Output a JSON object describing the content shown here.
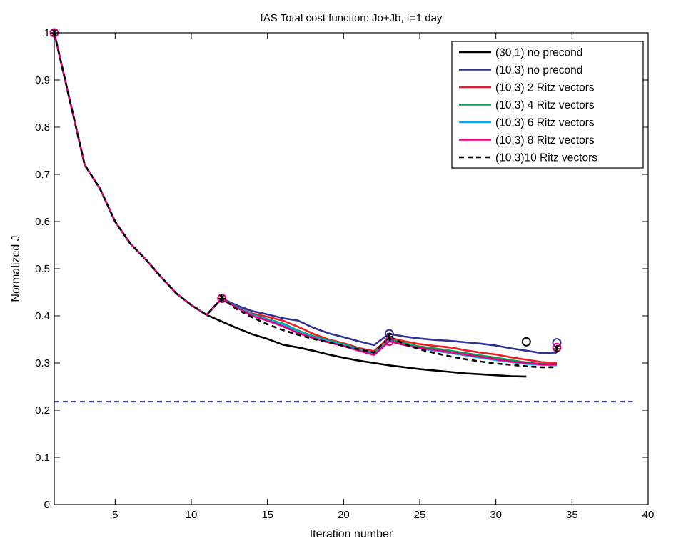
{
  "chart_data": {
    "type": "line",
    "title": "IAS Total cost function: Jo+Jb, t=1 day",
    "xlabel": "Iteration number",
    "ylabel": "Normalized J",
    "xlim": [
      1,
      40
    ],
    "ylim": [
      0,
      1
    ],
    "xticks": [
      5,
      10,
      15,
      20,
      25,
      30,
      35,
      40
    ],
    "yticks": [
      0,
      0.1,
      0.2,
      0.3,
      0.4,
      0.5,
      0.6,
      0.7,
      0.8,
      0.9,
      1
    ],
    "xtick_labels": [
      "5",
      "10",
      "15",
      "20",
      "25",
      "30",
      "35",
      "40"
    ],
    "ytick_labels": [
      "0",
      "0.1",
      "0.2",
      "0.3",
      "0.4",
      "0.5",
      "0.6",
      "0.7",
      "0.8",
      "0.9",
      "1"
    ],
    "grid": false,
    "legend_position": "top-right",
    "reference_line": {
      "y": 0.218,
      "color": "#2e3192",
      "style": "dashed",
      "x_range": [
        1,
        39
      ]
    },
    "series": [
      {
        "name": "(30,1) no precond",
        "color": "#000000",
        "style": "solid",
        "points": [
          [
            1,
            1
          ],
          [
            2,
            0.86
          ],
          [
            3,
            0.72
          ],
          [
            4,
            0.67
          ],
          [
            5,
            0.6
          ],
          [
            6,
            0.553
          ],
          [
            7,
            0.52
          ],
          [
            8,
            0.483
          ],
          [
            9,
            0.448
          ],
          [
            10,
            0.423
          ],
          [
            11,
            0.402
          ],
          [
            12,
            0.388
          ],
          [
            13,
            0.374
          ],
          [
            14,
            0.361
          ],
          [
            15,
            0.351
          ],
          [
            16,
            0.339
          ],
          [
            17,
            0.333
          ],
          [
            18,
            0.326
          ],
          [
            19,
            0.318
          ],
          [
            20,
            0.311
          ],
          [
            21,
            0.305
          ],
          [
            22,
            0.3
          ],
          [
            23,
            0.295
          ],
          [
            24,
            0.291
          ],
          [
            25,
            0.287
          ],
          [
            26,
            0.284
          ],
          [
            27,
            0.281
          ],
          [
            28,
            0.278
          ],
          [
            29,
            0.276
          ],
          [
            30,
            0.274
          ],
          [
            31,
            0.272
          ],
          [
            32,
            0.271
          ]
        ],
        "markers": [
          {
            "x": 32,
            "y": 0.345,
            "symbol": "circle"
          }
        ]
      },
      {
        "name": "(10,3) no precond",
        "color": "#2e3192",
        "style": "solid",
        "points": [
          [
            1,
            1
          ],
          [
            2,
            0.86
          ],
          [
            3,
            0.72
          ],
          [
            4,
            0.67
          ],
          [
            5,
            0.6
          ],
          [
            6,
            0.553
          ],
          [
            7,
            0.52
          ],
          [
            8,
            0.483
          ],
          [
            9,
            0.448
          ],
          [
            10,
            0.423
          ],
          [
            11,
            0.402
          ],
          [
            12,
            0.437
          ],
          [
            13,
            0.422
          ],
          [
            14,
            0.41
          ],
          [
            15,
            0.403
          ],
          [
            16,
            0.395
          ],
          [
            17,
            0.39
          ],
          [
            18,
            0.375
          ],
          [
            19,
            0.363
          ],
          [
            20,
            0.355
          ],
          [
            21,
            0.346
          ],
          [
            22,
            0.338
          ],
          [
            23,
            0.362
          ],
          [
            24,
            0.356
          ],
          [
            25,
            0.352
          ],
          [
            26,
            0.349
          ],
          [
            27,
            0.347
          ],
          [
            28,
            0.344
          ],
          [
            29,
            0.341
          ],
          [
            30,
            0.337
          ],
          [
            31,
            0.331
          ],
          [
            32,
            0.326
          ],
          [
            33,
            0.321
          ],
          [
            34,
            0.322
          ]
        ],
        "markers": [
          {
            "x": 23,
            "y": 0.362,
            "symbol": "circle"
          },
          {
            "x": 34,
            "y": 0.343,
            "symbol": "circle"
          }
        ]
      },
      {
        "name": "(10,3) 2 Ritz vectors",
        "color": "#ed1c24",
        "style": "solid",
        "points": [
          [
            1,
            1
          ],
          [
            2,
            0.86
          ],
          [
            3,
            0.72
          ],
          [
            4,
            0.67
          ],
          [
            5,
            0.6
          ],
          [
            6,
            0.553
          ],
          [
            7,
            0.52
          ],
          [
            8,
            0.483
          ],
          [
            9,
            0.448
          ],
          [
            10,
            0.423
          ],
          [
            11,
            0.402
          ],
          [
            12,
            0.437
          ],
          [
            13,
            0.418
          ],
          [
            14,
            0.405
          ],
          [
            15,
            0.398
          ],
          [
            16,
            0.39
          ],
          [
            17,
            0.377
          ],
          [
            18,
            0.362
          ],
          [
            19,
            0.35
          ],
          [
            20,
            0.342
          ],
          [
            21,
            0.332
          ],
          [
            22,
            0.325
          ],
          [
            23,
            0.354
          ],
          [
            24,
            0.346
          ],
          [
            25,
            0.34
          ],
          [
            26,
            0.336
          ],
          [
            27,
            0.333
          ],
          [
            28,
            0.327
          ],
          [
            29,
            0.322
          ],
          [
            30,
            0.318
          ],
          [
            31,
            0.312
          ],
          [
            32,
            0.307
          ],
          [
            33,
            0.302
          ],
          [
            34,
            0.3
          ]
        ],
        "markers": []
      },
      {
        "name": "(10,3) 4 Ritz vectors",
        "color": "#00a651",
        "style": "solid",
        "points": [
          [
            1,
            1
          ],
          [
            2,
            0.86
          ],
          [
            3,
            0.72
          ],
          [
            4,
            0.67
          ],
          [
            5,
            0.6
          ],
          [
            6,
            0.553
          ],
          [
            7,
            0.52
          ],
          [
            8,
            0.483
          ],
          [
            9,
            0.448
          ],
          [
            10,
            0.423
          ],
          [
            11,
            0.402
          ],
          [
            12,
            0.437
          ],
          [
            13,
            0.418
          ],
          [
            14,
            0.403
          ],
          [
            15,
            0.393
          ],
          [
            16,
            0.384
          ],
          [
            17,
            0.369
          ],
          [
            18,
            0.357
          ],
          [
            19,
            0.348
          ],
          [
            20,
            0.34
          ],
          [
            21,
            0.33
          ],
          [
            22,
            0.321
          ],
          [
            23,
            0.35
          ],
          [
            24,
            0.342
          ],
          [
            25,
            0.335
          ],
          [
            26,
            0.331
          ],
          [
            27,
            0.326
          ],
          [
            28,
            0.321
          ],
          [
            29,
            0.316
          ],
          [
            30,
            0.311
          ],
          [
            31,
            0.306
          ],
          [
            32,
            0.301
          ],
          [
            33,
            0.298
          ],
          [
            34,
            0.296
          ]
        ],
        "markers": []
      },
      {
        "name": "(10,3) 6 Ritz vectors",
        "color": "#00aeef",
        "style": "solid",
        "points": [
          [
            1,
            1
          ],
          [
            2,
            0.86
          ],
          [
            3,
            0.72
          ],
          [
            4,
            0.67
          ],
          [
            5,
            0.6
          ],
          [
            6,
            0.553
          ],
          [
            7,
            0.52
          ],
          [
            8,
            0.483
          ],
          [
            9,
            0.448
          ],
          [
            10,
            0.423
          ],
          [
            11,
            0.402
          ],
          [
            12,
            0.437
          ],
          [
            13,
            0.418
          ],
          [
            14,
            0.402
          ],
          [
            15,
            0.392
          ],
          [
            16,
            0.382
          ],
          [
            17,
            0.367
          ],
          [
            18,
            0.355
          ],
          [
            19,
            0.346
          ],
          [
            20,
            0.338
          ],
          [
            21,
            0.329
          ],
          [
            22,
            0.32
          ],
          [
            23,
            0.347
          ],
          [
            24,
            0.338
          ],
          [
            25,
            0.331
          ],
          [
            26,
            0.326
          ],
          [
            27,
            0.321
          ],
          [
            28,
            0.316
          ],
          [
            29,
            0.311
          ],
          [
            30,
            0.306
          ],
          [
            31,
            0.302
          ],
          [
            32,
            0.298
          ],
          [
            33,
            0.296
          ],
          [
            34,
            0.295
          ]
        ],
        "markers": []
      },
      {
        "name": "(10,3) 8 Ritz vectors",
        "color": "#e6007e",
        "style": "solid",
        "points": [
          [
            1,
            1
          ],
          [
            2,
            0.86
          ],
          [
            3,
            0.72
          ],
          [
            4,
            0.67
          ],
          [
            5,
            0.6
          ],
          [
            6,
            0.553
          ],
          [
            7,
            0.52
          ],
          [
            8,
            0.483
          ],
          [
            9,
            0.448
          ],
          [
            10,
            0.423
          ],
          [
            11,
            0.402
          ],
          [
            12,
            0.437
          ],
          [
            13,
            0.417
          ],
          [
            14,
            0.4
          ],
          [
            15,
            0.39
          ],
          [
            16,
            0.378
          ],
          [
            17,
            0.364
          ],
          [
            18,
            0.353
          ],
          [
            19,
            0.344
          ],
          [
            20,
            0.336
          ],
          [
            21,
            0.326
          ],
          [
            22,
            0.317
          ],
          [
            23,
            0.346
          ],
          [
            24,
            0.338
          ],
          [
            25,
            0.332
          ],
          [
            26,
            0.328
          ],
          [
            27,
            0.323
          ],
          [
            28,
            0.318
          ],
          [
            29,
            0.313
          ],
          [
            30,
            0.308
          ],
          [
            31,
            0.303
          ],
          [
            32,
            0.3
          ],
          [
            33,
            0.297
          ],
          [
            34,
            0.297
          ]
        ],
        "markers": [
          {
            "x": 1,
            "y": 1,
            "symbol": "circle"
          },
          {
            "x": 12,
            "y": 0.437,
            "symbol": "circle"
          },
          {
            "x": 23,
            "y": 0.346,
            "symbol": "circle"
          },
          {
            "x": 34,
            "y": 0.333,
            "symbol": "circle"
          }
        ]
      },
      {
        "name": "(10,3)10 Ritz vectors",
        "color": "#000000",
        "style": "dashed",
        "points": [
          [
            1,
            1
          ],
          [
            2,
            0.86
          ],
          [
            3,
            0.72
          ],
          [
            4,
            0.67
          ],
          [
            5,
            0.6
          ],
          [
            6,
            0.553
          ],
          [
            7,
            0.52
          ],
          [
            8,
            0.483
          ],
          [
            9,
            0.448
          ],
          [
            10,
            0.423
          ],
          [
            11,
            0.402
          ],
          [
            12,
            0.437
          ],
          [
            13,
            0.414
          ],
          [
            14,
            0.397
          ],
          [
            15,
            0.382
          ],
          [
            16,
            0.37
          ],
          [
            17,
            0.36
          ],
          [
            18,
            0.351
          ],
          [
            19,
            0.344
          ],
          [
            20,
            0.336
          ],
          [
            21,
            0.329
          ],
          [
            22,
            0.322
          ],
          [
            23,
            0.356
          ],
          [
            24,
            0.34
          ],
          [
            25,
            0.329
          ],
          [
            26,
            0.321
          ],
          [
            27,
            0.314
          ],
          [
            28,
            0.308
          ],
          [
            29,
            0.303
          ],
          [
            30,
            0.299
          ],
          [
            31,
            0.296
          ],
          [
            32,
            0.293
          ],
          [
            33,
            0.291
          ],
          [
            34,
            0.291
          ]
        ],
        "markers": [
          {
            "x": 1,
            "y": 1,
            "symbol": "star"
          },
          {
            "x": 12,
            "y": 0.437,
            "symbol": "star"
          },
          {
            "x": 23,
            "y": 0.356,
            "symbol": "star"
          },
          {
            "x": 34,
            "y": 0.33,
            "symbol": "star"
          }
        ]
      }
    ]
  }
}
